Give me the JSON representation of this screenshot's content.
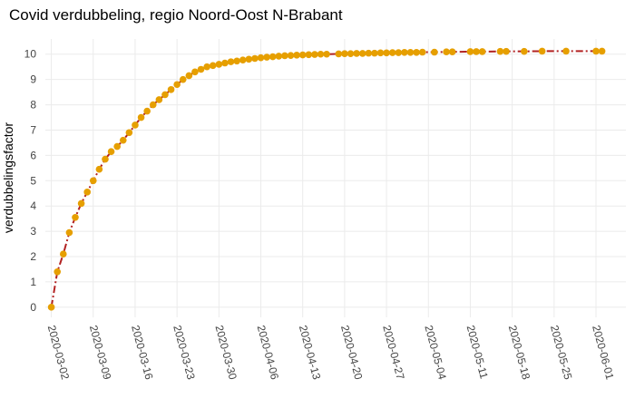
{
  "chart_data": {
    "type": "line",
    "title": "Covid verdubbeling, regio Noord-Oost N-Brabant",
    "xlabel": "",
    "ylabel": "verdubbelingsfactor",
    "x_ticks": [
      "2020-03-02",
      "2020-03-09",
      "2020-03-16",
      "2020-03-23",
      "2020-03-30",
      "2020-04-06",
      "2020-04-13",
      "2020-04-20",
      "2020-04-27",
      "2020-05-04",
      "2020-05-11",
      "2020-05-18",
      "2020-05-25",
      "2020-06-01"
    ],
    "y_ticks": [
      0,
      1,
      2,
      3,
      4,
      5,
      6,
      7,
      8,
      9,
      10
    ],
    "xlim": [
      "2020-03-01",
      "2020-06-06"
    ],
    "ylim": [
      -0.4,
      10.6
    ],
    "grid": true,
    "series": [
      {
        "line_color": "#b22222",
        "marker_color": "#e69f00",
        "line_style": "dash-dot",
        "points": [
          [
            "2020-03-02",
            0
          ],
          [
            "2020-03-03",
            1.4
          ],
          [
            "2020-03-04",
            2.1
          ],
          [
            "2020-03-05",
            2.95
          ],
          [
            "2020-03-06",
            3.55
          ],
          [
            "2020-03-07",
            4.1
          ],
          [
            "2020-03-08",
            4.55
          ],
          [
            "2020-03-09",
            5.0
          ],
          [
            "2020-03-10",
            5.45
          ],
          [
            "2020-03-11",
            5.85
          ],
          [
            "2020-03-12",
            6.15
          ],
          [
            "2020-03-13",
            6.35
          ],
          [
            "2020-03-14",
            6.6
          ],
          [
            "2020-03-15",
            6.9
          ],
          [
            "2020-03-16",
            7.2
          ],
          [
            "2020-03-17",
            7.5
          ],
          [
            "2020-03-18",
            7.75
          ],
          [
            "2020-03-19",
            8.0
          ],
          [
            "2020-03-20",
            8.2
          ],
          [
            "2020-03-21",
            8.4
          ],
          [
            "2020-03-22",
            8.6
          ],
          [
            "2020-03-23",
            8.8
          ],
          [
            "2020-03-24",
            9.0
          ],
          [
            "2020-03-25",
            9.15
          ],
          [
            "2020-03-26",
            9.3
          ],
          [
            "2020-03-27",
            9.4
          ],
          [
            "2020-03-28",
            9.5
          ],
          [
            "2020-03-29",
            9.55
          ],
          [
            "2020-03-30",
            9.6
          ],
          [
            "2020-03-31",
            9.65
          ],
          [
            "2020-04-01",
            9.7
          ],
          [
            "2020-04-02",
            9.73
          ],
          [
            "2020-04-03",
            9.77
          ],
          [
            "2020-04-04",
            9.8
          ],
          [
            "2020-04-05",
            9.83
          ],
          [
            "2020-04-06",
            9.86
          ],
          [
            "2020-04-07",
            9.88
          ],
          [
            "2020-04-08",
            9.9
          ],
          [
            "2020-04-09",
            9.92
          ],
          [
            "2020-04-10",
            9.94
          ],
          [
            "2020-04-11",
            9.95
          ],
          [
            "2020-04-12",
            9.96
          ],
          [
            "2020-04-13",
            9.97
          ],
          [
            "2020-04-14",
            9.98
          ],
          [
            "2020-04-15",
            9.99
          ],
          [
            "2020-04-16",
            10.0
          ],
          [
            "2020-04-17",
            10.0
          ],
          [
            "2020-04-19",
            10.01
          ],
          [
            "2020-04-20",
            10.02
          ],
          [
            "2020-04-21",
            10.02
          ],
          [
            "2020-04-22",
            10.03
          ],
          [
            "2020-04-23",
            10.03
          ],
          [
            "2020-04-24",
            10.04
          ],
          [
            "2020-04-25",
            10.04
          ],
          [
            "2020-04-26",
            10.05
          ],
          [
            "2020-04-27",
            10.05
          ],
          [
            "2020-04-28",
            10.06
          ],
          [
            "2020-04-29",
            10.06
          ],
          [
            "2020-04-30",
            10.07
          ],
          [
            "2020-05-01",
            10.07
          ],
          [
            "2020-05-02",
            10.07
          ],
          [
            "2020-05-03",
            10.08
          ],
          [
            "2020-05-05",
            10.08
          ],
          [
            "2020-05-07",
            10.09
          ],
          [
            "2020-05-08",
            10.09
          ],
          [
            "2020-05-11",
            10.1
          ],
          [
            "2020-05-12",
            10.1
          ],
          [
            "2020-05-13",
            10.1
          ],
          [
            "2020-05-16",
            10.11
          ],
          [
            "2020-05-17",
            10.11
          ],
          [
            "2020-05-20",
            10.11
          ],
          [
            "2020-05-23",
            10.12
          ],
          [
            "2020-05-27",
            10.12
          ],
          [
            "2020-06-01",
            10.12
          ],
          [
            "2020-06-02",
            10.12
          ]
        ]
      }
    ]
  }
}
